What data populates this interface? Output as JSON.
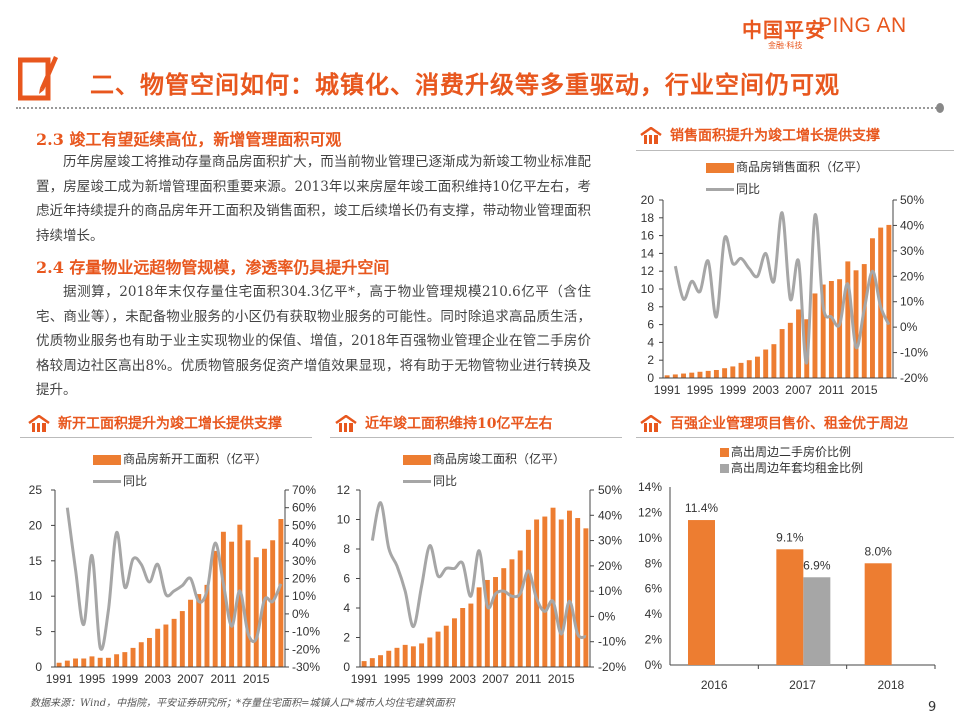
{
  "header": {
    "logo_cn": "中国平安",
    "logo_en": "PING AN",
    "logo_sub": "金融·科技",
    "title": "二、物管空间如何：城镇化、消费升级等多重驱动，行业空间仍可观"
  },
  "sections": [
    {
      "heading": "2.3  竣工有望延续高位，新增管理面积可观",
      "body": "历年房屋竣工将推动存量商品房面积扩大，而当前物业管理已逐渐成为新竣工物业标准配置，房屋竣工成为新增管理面积重要来源。2013年以来房屋年竣工面积维持10亿平左右，考虑近年持续提升的商品房年开工面积及销售面积，竣工后续增长仍有支撑，带动物业管理面积持续增长。"
    },
    {
      "heading": "2.4  存量物业远超物管规模，渗透率仍具提升空间",
      "body": "据测算，2018年末仅存量住宅面积304.3亿平*，高于物业管理规模210.6亿平（含住宅、商业等），未配备物业服务的小区仍有获取物业服务的可能性。同时除追求高品质生活，优质物业服务也有助于业主实现物业的保值、增值，2018年百强物业管理企业在管二手房价格较周边社区高出8%。优质物管服务促资产增值效果显现，将有助于无物管物业进行转换及提升。"
    }
  ],
  "colors": {
    "accent": "#e8571e",
    "bar": "#ed7d31",
    "line": "#a6a6a6"
  },
  "chart_titles": [
    "销售面积提升为竣工增长提供支撑",
    "新开工面积提升为竣工增长提供支撑",
    "近年竣工面积维持10亿平左右",
    "百强企业管理项目售价、租金优于周边"
  ],
  "chart_data": [
    {
      "type": "bar+line",
      "categories": [
        1991,
        1992,
        1993,
        1994,
        1995,
        1996,
        1997,
        1998,
        1999,
        2000,
        2001,
        2002,
        2003,
        2004,
        2005,
        2006,
        2007,
        2008,
        2009,
        2010,
        2011,
        2012,
        2013,
        2014,
        2015,
        2016,
        2017,
        2018
      ],
      "xtick_labels": [
        "1991",
        "1995",
        "1999",
        "2003",
        "2007",
        "2011",
        "2015"
      ],
      "series": [
        {
          "name": "商品房销售面积（亿平）",
          "type": "bar",
          "axis": "left",
          "values": [
            0.3,
            0.4,
            0.5,
            0.6,
            0.7,
            0.8,
            0.9,
            1.1,
            1.3,
            1.7,
            2.0,
            2.4,
            3.2,
            3.8,
            5.5,
            6.2,
            7.7,
            6.6,
            9.5,
            10.5,
            10.9,
            11.1,
            13.1,
            12.1,
            12.8,
            15.7,
            16.9,
            17.2
          ]
        },
        {
          "name": "同比",
          "type": "line",
          "axis": "right",
          "values": [
            null,
            24,
            11,
            18,
            14,
            26,
            4,
            35,
            25,
            27,
            23,
            20,
            29,
            18,
            45,
            11,
            26,
            -14,
            44,
            8,
            4,
            1,
            17,
            -8,
            7,
            22,
            8,
            1
          ]
        }
      ],
      "left_axis": {
        "ylim": [
          0,
          20
        ],
        "ticks": [
          "0",
          "2",
          "4",
          "6",
          "8",
          "10",
          "12",
          "14",
          "16",
          "18",
          "20"
        ]
      },
      "right_axis": {
        "ylim": [
          -20,
          50
        ],
        "ticks": [
          "-20%",
          "-10%",
          "0%",
          "10%",
          "20%",
          "30%",
          "40%",
          "50%"
        ]
      },
      "legend": "top-left"
    },
    {
      "type": "bar+line",
      "categories": [
        1991,
        1992,
        1993,
        1994,
        1995,
        1996,
        1997,
        1998,
        1999,
        2000,
        2001,
        2002,
        2003,
        2004,
        2005,
        2006,
        2007,
        2008,
        2009,
        2010,
        2011,
        2012,
        2013,
        2014,
        2015,
        2016,
        2017,
        2018
      ],
      "xtick_labels": [
        "1991",
        "1995",
        "1999",
        "2003",
        "2007",
        "2011",
        "2015"
      ],
      "series": [
        {
          "name": "商品房新开工面积（亿平）",
          "type": "bar",
          "axis": "left",
          "values": [
            0.6,
            0.9,
            1.2,
            1.2,
            1.5,
            1.3,
            1.3,
            1.8,
            2.1,
            2.7,
            3.5,
            4.1,
            5.4,
            6.0,
            6.8,
            7.9,
            9.5,
            10.3,
            11.6,
            16.4,
            19.1,
            17.7,
            20.1,
            17.9,
            15.5,
            16.7,
            17.9,
            20.9
          ]
        },
        {
          "name": "同比",
          "type": "line",
          "axis": "right",
          "values": [
            null,
            60,
            25,
            -6,
            33,
            -19,
            2,
            46,
            15,
            31,
            28,
            18,
            28,
            11,
            13,
            16,
            20,
            7,
            13,
            40,
            17,
            -7,
            13,
            -11,
            -14,
            8,
            7,
            17
          ]
        }
      ],
      "left_axis": {
        "ylim": [
          0,
          25
        ],
        "ticks": [
          "0",
          "5",
          "10",
          "15",
          "20",
          "25"
        ]
      },
      "right_axis": {
        "ylim": [
          -30,
          70
        ],
        "ticks": [
          "-30%",
          "-20%",
          "-10%",
          "0%",
          "10%",
          "20%",
          "30%",
          "40%",
          "50%",
          "60%",
          "70%"
        ]
      },
      "legend": "top-left"
    },
    {
      "type": "bar+line",
      "categories": [
        1991,
        1992,
        1993,
        1994,
        1995,
        1996,
        1997,
        1998,
        1999,
        2000,
        2001,
        2002,
        2003,
        2004,
        2005,
        2006,
        2007,
        2008,
        2009,
        2010,
        2011,
        2012,
        2013,
        2014,
        2015,
        2016,
        2017,
        2018
      ],
      "xtick_labels": [
        "1991",
        "1995",
        "1999",
        "2003",
        "2007",
        "2011",
        "2015"
      ],
      "series": [
        {
          "name": "商品房竣工面积（亿平）",
          "type": "bar",
          "axis": "left",
          "values": [
            0.4,
            0.6,
            0.8,
            1.1,
            1.3,
            1.5,
            1.4,
            1.6,
            2.0,
            2.4,
            2.8,
            3.3,
            4.0,
            4.3,
            5.4,
            5.9,
            6.1,
            6.7,
            7.3,
            7.9,
            9.3,
            10.0,
            10.2,
            10.8,
            10.0,
            10.6,
            10.1,
            9.4
          ]
        },
        {
          "name": "同比",
          "type": "line",
          "axis": "right",
          "values": [
            null,
            30,
            45,
            27,
            20,
            10,
            -4,
            12,
            28,
            16,
            19,
            19,
            21,
            8,
            26,
            4,
            9,
            10,
            8,
            9,
            18,
            7,
            2,
            6,
            -7,
            6,
            -7,
            -8
          ]
        }
      ],
      "left_axis": {
        "ylim": [
          0,
          12
        ],
        "ticks": [
          "0",
          "2",
          "4",
          "6",
          "8",
          "10",
          "12"
        ]
      },
      "right_axis": {
        "ylim": [
          -20,
          50
        ],
        "ticks": [
          "-20%",
          "-10%",
          "0%",
          "10%",
          "20%",
          "30%",
          "40%",
          "50%"
        ]
      },
      "legend": "top-left"
    },
    {
      "type": "bar",
      "categories": [
        "2016",
        "2017",
        "2018"
      ],
      "series": [
        {
          "name": "高出周边二手房价比例",
          "color": "#ed7d31",
          "values": [
            11.4,
            9.1,
            8.0
          ],
          "labels": [
            "11.4%",
            "9.1%",
            "8.0%"
          ]
        },
        {
          "name": "高出周边年套均租金比例",
          "color": "#a6a6a6",
          "values": [
            null,
            6.9,
            null
          ],
          "labels": [
            "",
            "6.9%",
            ""
          ]
        }
      ],
      "left_axis": {
        "ylim": [
          0,
          14
        ],
        "ticks": [
          "0%",
          "2%",
          "4%",
          "6%",
          "8%",
          "10%",
          "12%",
          "14%"
        ]
      },
      "legend": "top-left"
    }
  ],
  "footer": {
    "source": "数据来源：Wind，中指院，平安证券研究所；*存量住宅面积=城镇人口*城市人均住宅建筑面积",
    "page": "9"
  }
}
